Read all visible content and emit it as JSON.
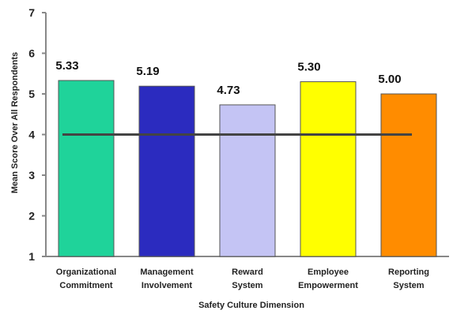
{
  "chart_data": {
    "type": "bar",
    "categories": [
      [
        "Organizational",
        "Commitment"
      ],
      [
        "Management",
        "Involvement"
      ],
      [
        "Reward",
        "System"
      ],
      [
        "Employee",
        "Empowerment"
      ],
      [
        "Reporting",
        "System"
      ]
    ],
    "values": [
      5.33,
      5.19,
      4.73,
      5.3,
      5.0
    ],
    "data_labels": [
      "5.33",
      "5.19",
      "4.73",
      "5.30",
      "5.00"
    ],
    "bar_colors": [
      "#1fd39a",
      "#2b2bbf",
      "#c4c4f4",
      "#ffff00",
      "#ff8c00"
    ],
    "reference_line": {
      "value": 4,
      "color": "#444444"
    },
    "ylim": [
      1,
      7
    ],
    "yticks": [
      "1",
      "2",
      "3",
      "4",
      "5",
      "6",
      "7"
    ],
    "xlabel": "Safety Culture Dimension",
    "ylabel": "Mean Score Over All Respondents",
    "grid": false,
    "legend": "none"
  }
}
